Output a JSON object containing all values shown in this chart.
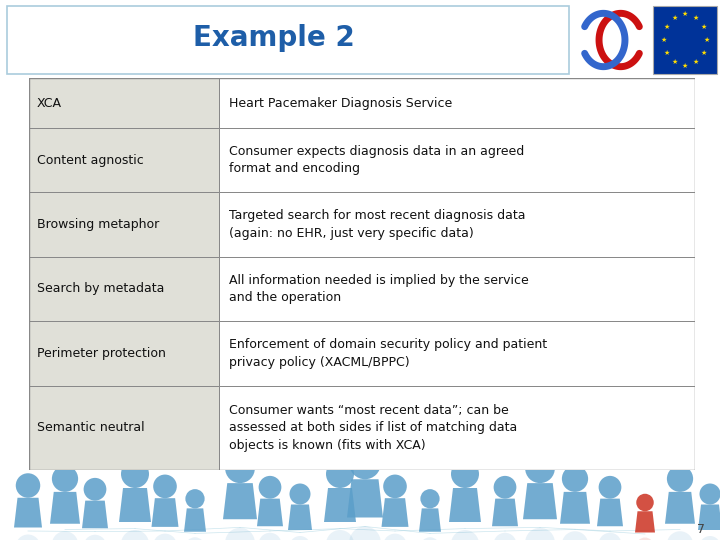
{
  "title": "Example 2",
  "title_color": "#1E5EA8",
  "title_fontsize": 20,
  "bg_color": "#FFFFFF",
  "table_border_color": "#888888",
  "table_left_bg": "#E0E0D8",
  "table_right_bg": "#FFFFFF",
  "rows": [
    {
      "left": "XCA",
      "right": "Heart Pacemaker Diagnosis Service"
    },
    {
      "left": "Content agnostic",
      "right": "Consumer expects diagnosis data in an agreed\nformat and encoding"
    },
    {
      "left": "Browsing metaphor",
      "right": "Targeted search for most recent diagnosis data\n(again: no EHR, just very specific data)"
    },
    {
      "left": "Search by metadata",
      "right": "All information needed is implied by the service\nand the operation"
    },
    {
      "left": "Perimeter protection",
      "right": "Enforcement of domain security policy and patient\nprivacy policy (XACML/BPPC)"
    },
    {
      "left": "Semantic neutral",
      "right": "Consumer wants “most recent data”; can be\nassessed at both sides if list of matching data\nobjects is known (fits with XCA)"
    }
  ],
  "bottom_bg": "#B8D8E8",
  "page_number": "7",
  "row_heights": [
    1.0,
    1.3,
    1.3,
    1.3,
    1.3,
    1.7
  ],
  "col_split": 0.285,
  "text_fontsize": 9.0,
  "person_color": "#5B9EC9",
  "person_red_color": "#CC3322",
  "header_border_color": "#AACCDD"
}
